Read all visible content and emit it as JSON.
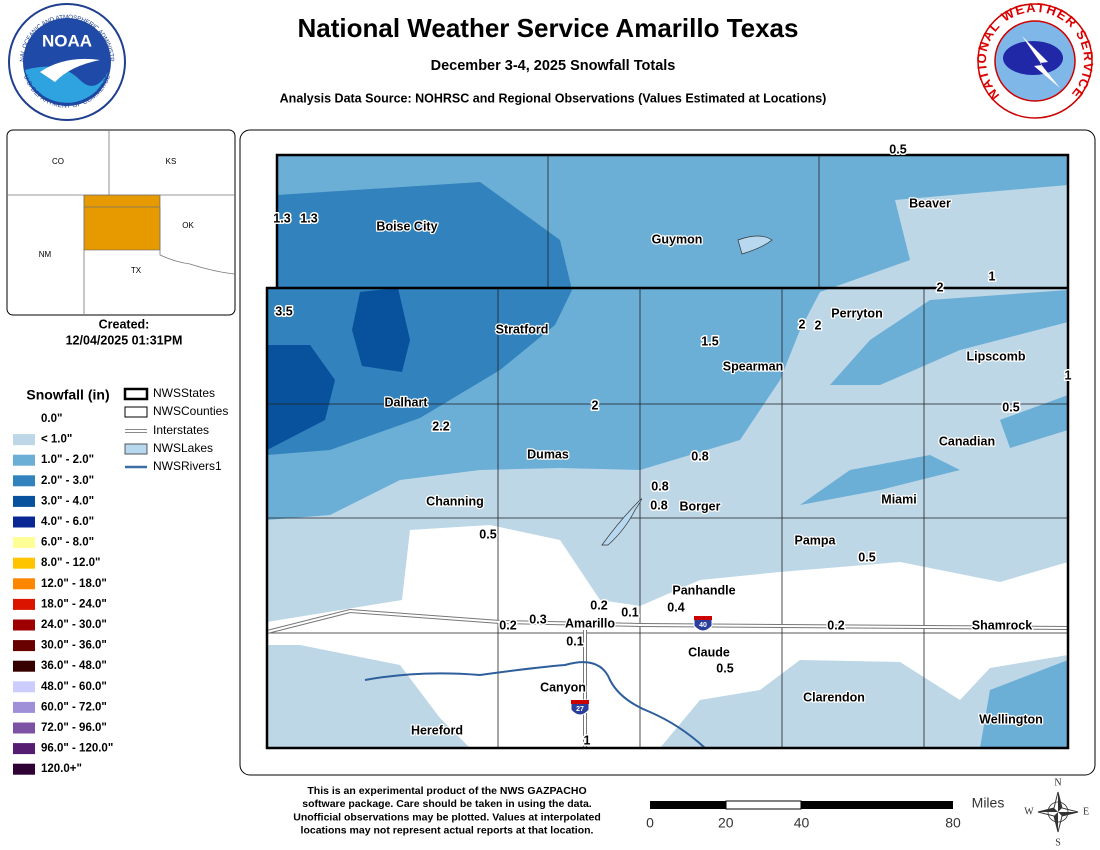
{
  "header": {
    "title": "National Weather Service Amarillo Texas",
    "subtitle": "December 3-4, 2025 Snowfall Totals",
    "source": "Analysis Data Source: NOHRSC and Regional Observations (Values Estimated at Locations)"
  },
  "logos": {
    "noaa": "NOAA",
    "noaa_ring": "NATIONAL OCEANIC AND ATMOSPHERIC ADMINISTRATION",
    "noaa_ring_bottom": "U.S. DEPARTMENT OF COMMERCE",
    "nws_ring": "NATIONAL WEATHER SERVICE"
  },
  "inset": {
    "states": [
      "CO",
      "KS",
      "NM",
      "OK",
      "TX"
    ],
    "created_label": "Created:",
    "created": "12/04/2025 01:31PM"
  },
  "legend": {
    "title": "Snowfall (in)",
    "layers": [
      "NWSStates",
      "NWSCounties",
      "Interstates",
      "NWSLakes",
      "NWSRivers1"
    ],
    "classes": [
      {
        "label": "0.0\"",
        "color": "#ffffff"
      },
      {
        "label": "< 1.0\"",
        "color": "#bdd7e7"
      },
      {
        "label": "1.0\" - 2.0\"",
        "color": "#6baed6"
      },
      {
        "label": "2.0\" - 3.0\"",
        "color": "#3182bd"
      },
      {
        "label": "3.0\" - 4.0\"",
        "color": "#08519c"
      },
      {
        "label": "4.0\" - 6.0\"",
        "color": "#082694"
      },
      {
        "label": "6.0\" - 8.0\"",
        "color": "#ffff96"
      },
      {
        "label": "8.0\" - 12.0\"",
        "color": "#ffc400"
      },
      {
        "label": "12.0\" - 18.0\"",
        "color": "#ff8700"
      },
      {
        "label": "18.0\" - 24.0\"",
        "color": "#db1400"
      },
      {
        "label": "24.0\" - 30.0\"",
        "color": "#9e0000"
      },
      {
        "label": "30.0\" - 36.0\"",
        "color": "#690000"
      },
      {
        "label": "36.0\" - 48.0\"",
        "color": "#360000"
      },
      {
        "label": "48.0\" - 60.0\"",
        "color": "#ccccff"
      },
      {
        "label": "60.0\" - 72.0\"",
        "color": "#9f8fd8"
      },
      {
        "label": "72.0\" - 96.0\"",
        "color": "#7c52a5"
      },
      {
        "label": "96.0\" - 120.0\"",
        "color": "#561c72"
      },
      {
        "label": "120.0+\"",
        "color": "#2e0033"
      }
    ]
  },
  "map": {
    "towns": [
      "Boise City",
      "Guymon",
      "Beaver",
      "Perryton",
      "Stratford",
      "Spearman",
      "Lipscomb",
      "Dalhart",
      "Dumas",
      "Canadian",
      "Channing",
      "Borger",
      "Miami",
      "Pampa",
      "Panhandle",
      "Amarillo",
      "Shamrock",
      "Claude",
      "Canyon",
      "Clarendon",
      "Hereford",
      "Wellington"
    ],
    "snowfall_labels": [
      "0.5",
      "1.3",
      "1.3",
      "3.5",
      "2",
      "1",
      "2",
      "2",
      "1.5",
      "1",
      "0.5",
      "2",
      "2.2",
      "0.8",
      "0.8",
      "0.8",
      "0.5",
      "0.5",
      "0.2",
      "0.1",
      "0.4",
      "0.3",
      "0.2",
      "0.2",
      "0.1",
      "0.5",
      "1"
    ],
    "shields": [
      "40",
      "27"
    ]
  },
  "footer": {
    "disclaimer": [
      "This is an experimental product of the NWS GAZPACHO",
      "software package. Care should be taken in using the data.",
      "Unofficial observations may be plotted. Values at interpolated",
      "locations may not represent actual reports at that location."
    ],
    "scale": {
      "unit": "Miles",
      "ticks": [
        0,
        20,
        40,
        80
      ]
    },
    "compass": [
      "N",
      "E",
      "S",
      "W"
    ]
  }
}
